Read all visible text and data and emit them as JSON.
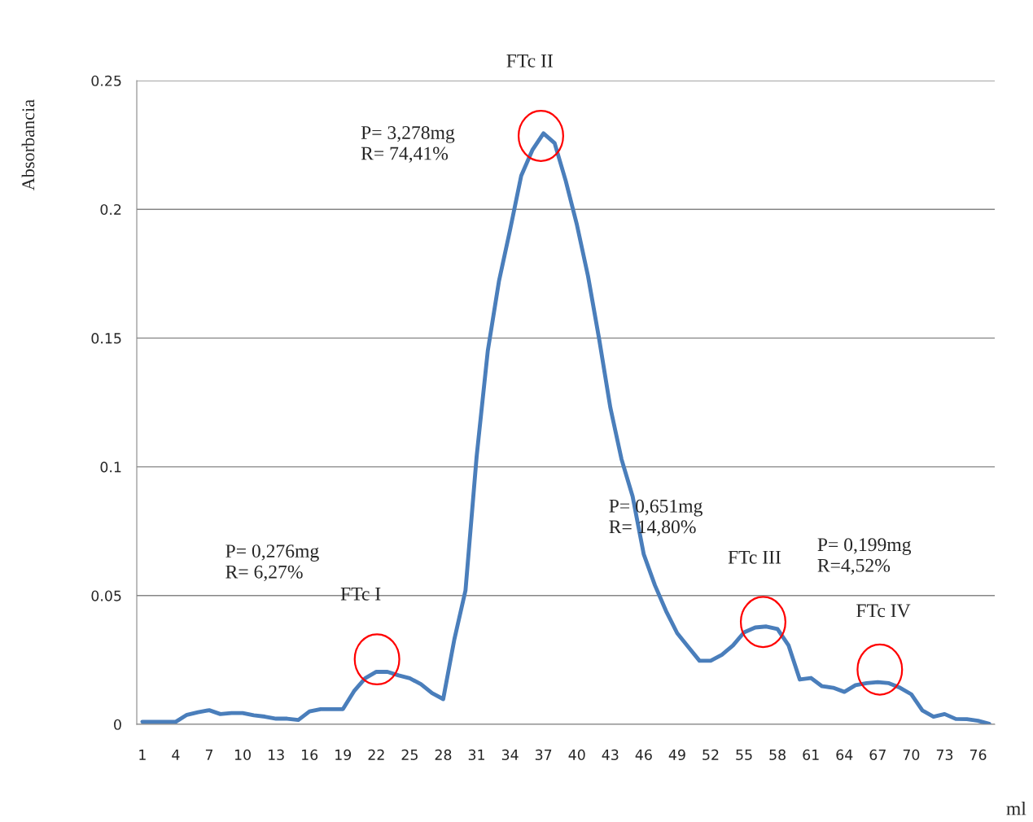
{
  "chart_data": {
    "type": "line",
    "xlabel": "ml",
    "ylabel": "Absorbancia",
    "x": [
      1,
      2,
      3,
      4,
      5,
      6,
      7,
      8,
      9,
      10,
      11,
      12,
      13,
      14,
      15,
      16,
      17,
      18,
      19,
      20,
      21,
      22,
      23,
      24,
      25,
      26,
      27,
      28,
      29,
      30,
      31,
      32,
      33,
      34,
      35,
      36,
      37,
      38,
      39,
      40,
      41,
      42,
      43,
      44,
      45,
      46,
      47,
      48,
      49,
      50,
      51,
      52,
      53,
      54,
      55,
      56,
      57,
      58,
      59,
      60,
      61,
      62,
      63,
      64,
      65,
      66,
      67,
      68,
      69,
      70,
      71,
      72,
      73,
      74,
      75,
      76,
      77
    ],
    "series": [
      {
        "color": "#4a7ebb",
        "values": [
          0.001,
          0.001,
          0.001,
          0.001,
          0.0037,
          0.0047,
          0.0055,
          0.004,
          0.0044,
          0.0044,
          0.0035,
          0.003,
          0.0022,
          0.0022,
          0.0017,
          0.005,
          0.0059,
          0.0059,
          0.0059,
          0.0129,
          0.0179,
          0.0204,
          0.0204,
          0.019,
          0.0179,
          0.0156,
          0.0121,
          0.0098,
          0.033,
          0.052,
          0.104,
          0.145,
          0.172,
          0.192,
          0.213,
          0.223,
          0.2295,
          0.2257,
          0.211,
          0.194,
          0.174,
          0.1495,
          0.123,
          0.103,
          0.0885,
          0.066,
          0.054,
          0.044,
          0.0354,
          0.03,
          0.0247,
          0.0247,
          0.027,
          0.0306,
          0.0357,
          0.0376,
          0.038,
          0.037,
          0.0306,
          0.0174,
          0.018,
          0.0148,
          0.0142,
          0.0126,
          0.0152,
          0.016,
          0.0164,
          0.016,
          0.0142,
          0.0117,
          0.0054,
          0.003,
          0.004,
          0.0021,
          0.002,
          0.0014,
          0.0002
        ]
      }
    ],
    "xlim": [
      0.5,
      77.5
    ],
    "xticks": [
      1,
      4,
      7,
      10,
      13,
      16,
      19,
      22,
      25,
      28,
      31,
      34,
      37,
      40,
      43,
      46,
      49,
      52,
      55,
      58,
      61,
      64,
      67,
      70,
      73,
      76
    ],
    "ylim": [
      0,
      0.25
    ],
    "yticks": [
      0,
      0.05,
      0.1,
      0.15,
      0.2,
      0.25
    ],
    "grid": "y",
    "annotations": [
      "FTc I",
      "FTc II",
      "FTc III",
      "FTc IV",
      "P= 0,276mg\nR= 6,27%",
      "P= 3,278mg\nR= 74,41%",
      "P= 0,651mg\nR= 14,80%",
      "P= 0,199mg\nR=4,52%"
    ]
  }
}
